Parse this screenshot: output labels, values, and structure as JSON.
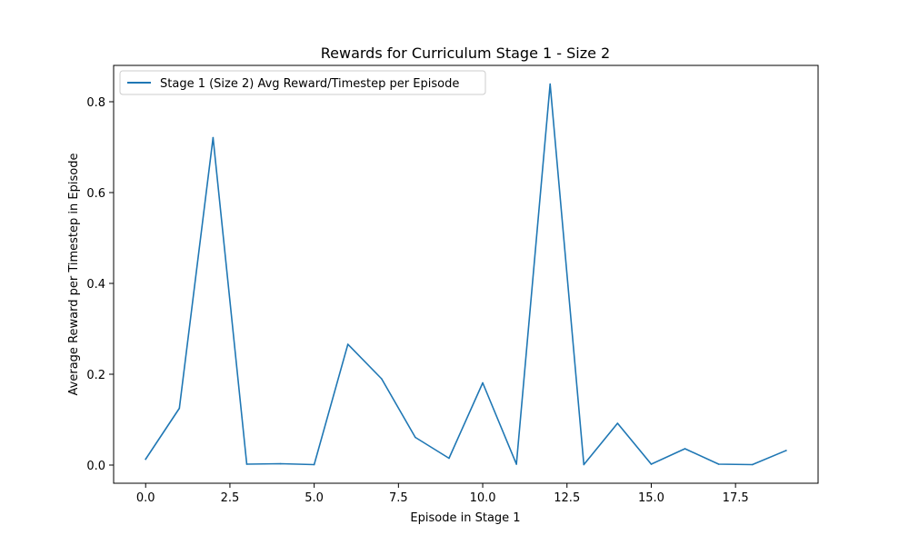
{
  "chart_data": {
    "type": "line",
    "title": "Rewards for Curriculum Stage 1 - Size 2",
    "xlabel": "Episode in Stage 1",
    "ylabel": "Average Reward per Timestep in Episode",
    "xlim": [
      -0.95,
      19.95
    ],
    "ylim": [
      -0.04,
      0.88
    ],
    "x_ticks": [
      0.0,
      2.5,
      5.0,
      7.5,
      10.0,
      12.5,
      15.0,
      17.5
    ],
    "x_tick_labels": [
      "0.0",
      "2.5",
      "5.0",
      "7.5",
      "10.0",
      "12.5",
      "15.0",
      "17.5"
    ],
    "y_ticks": [
      0.0,
      0.2,
      0.4,
      0.6,
      0.8
    ],
    "y_tick_labels": [
      "0.0",
      "0.2",
      "0.4",
      "0.6",
      "0.8"
    ],
    "grid": false,
    "legend_position": "top-left",
    "series": [
      {
        "name": "Stage 1 (Size 2) Avg Reward/Timestep per Episode",
        "color": "#1f77b4",
        "x": [
          0,
          1,
          2,
          3,
          4,
          5,
          6,
          7,
          8,
          9,
          10,
          11,
          12,
          13,
          14,
          15,
          16,
          17,
          18,
          19
        ],
        "values": [
          0.013,
          0.125,
          0.721,
          0.002,
          0.003,
          0.001,
          0.266,
          0.19,
          0.061,
          0.015,
          0.181,
          0.002,
          0.839,
          0.001,
          0.092,
          0.002,
          0.036,
          0.002,
          0.001,
          0.032
        ]
      }
    ]
  }
}
